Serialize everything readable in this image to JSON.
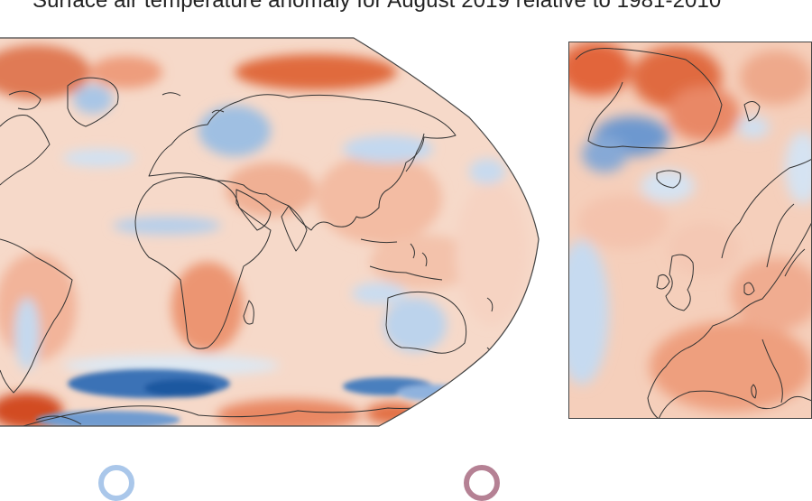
{
  "figure": {
    "title": "Surface air temperature anomaly for August 2019 relative to 1981-2010"
  },
  "maps": {
    "global": {
      "extent": "world",
      "projection": "robinson"
    },
    "europe": {
      "extent": "europe"
    }
  },
  "colors": {
    "warm_strong": "#d2461e",
    "warm": "#ef9a76",
    "warm_light": "#f7d3c0",
    "neutral": "#f4ece8",
    "cool_light": "#cfe0f2",
    "cool": "#8bb2dc",
    "cool_strong": "#2460a8",
    "coastline": "#333333"
  },
  "legend": {
    "cool_icon": "cool-anomaly-marker",
    "warm_icon": "warm-anomaly-marker"
  }
}
